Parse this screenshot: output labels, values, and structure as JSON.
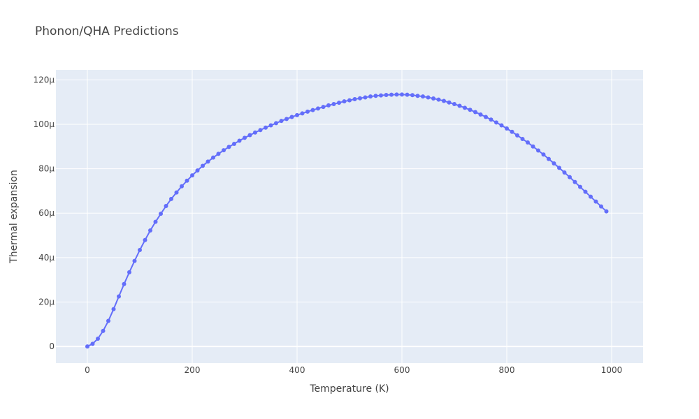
{
  "chart_data": {
    "type": "line",
    "title": "Phonon/QHA Predictions",
    "xlabel": "Temperature (K)",
    "ylabel": "Thermal expansion",
    "xlim": [
      -60,
      1060
    ],
    "ylim": [
      -7.5e-06,
      0.0001245
    ],
    "x_ticks": [
      0,
      200,
      400,
      600,
      800,
      1000
    ],
    "x_tick_labels": [
      "0",
      "200",
      "400",
      "600",
      "800",
      "1000"
    ],
    "y_ticks": [
      0,
      2e-05,
      4e-05,
      6e-05,
      8e-05,
      0.0001,
      0.00012
    ],
    "y_tick_labels": [
      "0",
      "20μ",
      "40μ",
      "60μ",
      "80μ",
      "100μ",
      "120μ"
    ],
    "grid": true,
    "colors": {
      "plot_bg": "#e5ecf6",
      "grid": "#ffffff",
      "series": "#636efa"
    },
    "series": [
      {
        "mode": "lines+markers",
        "x": [
          0,
          10,
          20,
          30,
          40,
          50,
          60,
          70,
          80,
          90,
          100,
          110,
          120,
          130,
          140,
          150,
          160,
          170,
          180,
          190,
          200,
          210,
          220,
          230,
          240,
          250,
          260,
          270,
          280,
          290,
          300,
          310,
          320,
          330,
          340,
          350,
          360,
          370,
          380,
          390,
          400,
          410,
          420,
          430,
          440,
          450,
          460,
          470,
          480,
          490,
          500,
          510,
          520,
          530,
          540,
          550,
          560,
          570,
          580,
          590,
          600,
          610,
          620,
          630,
          640,
          650,
          660,
          670,
          680,
          690,
          700,
          710,
          720,
          730,
          740,
          750,
          760,
          770,
          780,
          790,
          800,
          810,
          820,
          830,
          840,
          850,
          860,
          870,
          880,
          890,
          900,
          910,
          920,
          930,
          940,
          950,
          960,
          970,
          980,
          990
        ],
        "y": [
          0,
          1.2e-06,
          3.5e-06,
          7e-06,
          1.15e-05,
          1.68e-05,
          2.25e-05,
          2.81e-05,
          3.34e-05,
          3.85e-05,
          4.34e-05,
          4.79e-05,
          5.22e-05,
          5.61e-05,
          5.97e-05,
          6.32e-05,
          6.64e-05,
          6.93e-05,
          7.21e-05,
          7.46e-05,
          7.7e-05,
          7.92e-05,
          8.13e-05,
          8.32e-05,
          8.5e-05,
          8.67e-05,
          8.83e-05,
          8.98e-05,
          9.12e-05,
          9.26e-05,
          9.39e-05,
          9.51e-05,
          9.63e-05,
          9.74e-05,
          9.85e-05,
          9.95e-05,
          0.0001005,
          0.0001015,
          0.0001024,
          0.0001033,
          0.0001041,
          0.0001049,
          0.0001057,
          0.0001064,
          0.0001071,
          0.0001078,
          0.0001085,
          0.0001091,
          0.0001097,
          0.0001103,
          0.0001108,
          0.0001113,
          0.0001117,
          0.0001121,
          0.0001125,
          0.0001128,
          0.000113,
          0.0001132,
          0.0001133,
          0.0001134,
          0.0001134,
          0.0001133,
          0.0001131,
          0.0001128,
          0.0001125,
          0.0001121,
          0.0001116,
          0.0001111,
          0.0001105,
          0.0001098,
          0.0001091,
          0.0001083,
          0.0001074,
          0.0001065,
          0.0001055,
          0.0001044,
          0.0001033,
          0.0001021,
          0.0001008,
          9.95e-05,
          9.81e-05,
          9.66e-05,
          9.5e-05,
          9.34e-05,
          9.18e-05,
          9e-05,
          8.82e-05,
          8.64e-05,
          8.44e-05,
          8.24e-05,
          8.04e-05,
          7.83e-05,
          7.62e-05,
          7.4e-05,
          7.18e-05,
          6.96e-05,
          6.74e-05,
          6.52e-05,
          6.3e-05,
          6.08e-05
        ]
      }
    ]
  }
}
